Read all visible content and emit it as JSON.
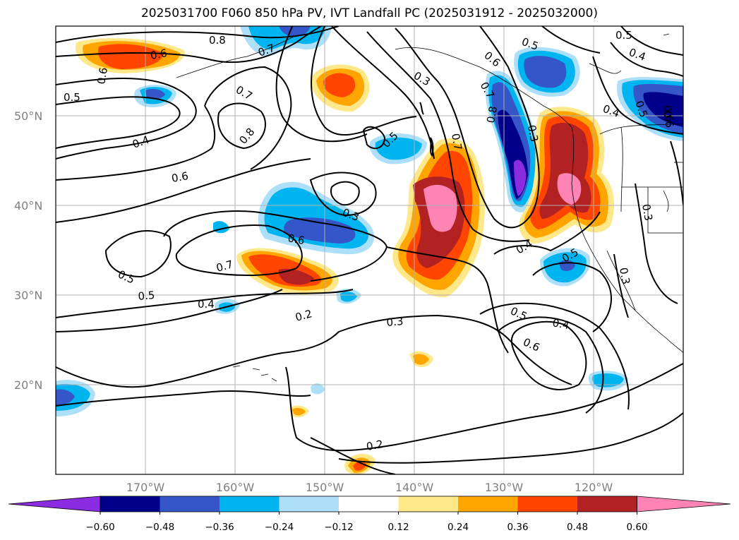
{
  "title": "2025031700 F060 850 hPa PV, IVT Landfall PC (2025031912 - 2025032000)",
  "axes": {
    "lon_labels": [
      "170°W",
      "160°W",
      "150°W",
      "140°W",
      "130°W",
      "120°W"
    ],
    "lat_labels": [
      "50°N",
      "40°N",
      "30°N",
      "20°N"
    ]
  },
  "colorbar": {
    "tick_labels": [
      "−0.60",
      "−0.48",
      "−0.36",
      "−0.24",
      "−0.12",
      "0.12",
      "0.24",
      "0.36",
      "0.48",
      "0.60"
    ],
    "colors": [
      "#8b2be2",
      "#00008b",
      "#3556c8",
      "#00b4f0",
      "#ade0f8",
      "#ffffff",
      "#ffe88a",
      "#ffa500",
      "#ff4500",
      "#b22222",
      "#ff84b4"
    ]
  },
  "contour_labels": [
    "0.8",
    "0.6",
    "0.7",
    "0.6",
    "0.5",
    "0.4",
    "0.7",
    "0.8",
    "0.6",
    "0.5",
    "0.7",
    "0.5",
    "0.5",
    "0.4",
    "0.6",
    "0.3",
    "0.6",
    "0.7",
    "0.5",
    "0.4",
    "0.2",
    "0.3",
    "0.2",
    "0.5",
    "0.6",
    "0.8",
    "0.7",
    "0.3",
    "0.4",
    "0.5",
    "0.3",
    "0.5",
    "0.4",
    "0.6",
    "0.4",
    "0.5",
    "0.6",
    "0.3",
    "0.3"
  ]
}
